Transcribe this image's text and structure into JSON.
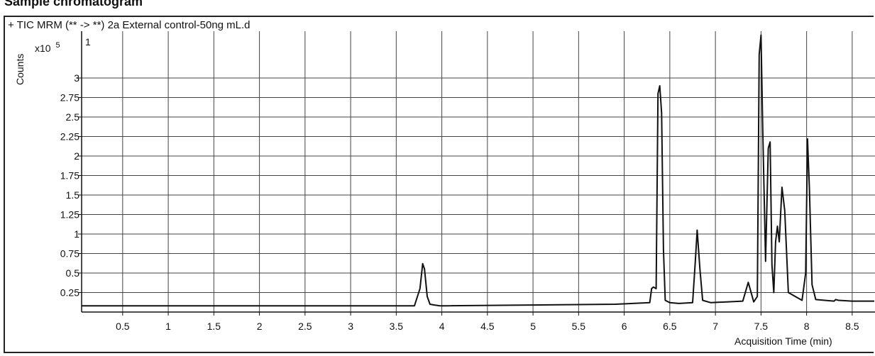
{
  "page": {
    "heading": "Sample chromatogram"
  },
  "chart_data": {
    "type": "line",
    "title": "+ TIC MRM (** -> **) 2a External control-50ng mL.d",
    "xlabel": "Acquisition Time (min)",
    "ylabel": "Counts",
    "y_multiplier_label": "x10",
    "y_multiplier_exponent": "5",
    "panel_number": "1",
    "xlim": [
      0.05,
      8.75
    ],
    "ylim": [
      0,
      3.6
    ],
    "grid": true,
    "x_ticks": [
      0.5,
      1,
      1.5,
      2,
      2.5,
      3,
      3.5,
      4,
      4.5,
      5,
      5.5,
      6,
      6.5,
      7,
      7.5,
      8,
      8.5
    ],
    "x_tick_labels": [
      "0.5",
      "1",
      "1.5",
      "2",
      "2.5",
      "3",
      "3.5",
      "4",
      "4.5",
      "5",
      "5.5",
      "6",
      "6.5",
      "7",
      "7.5",
      "8",
      "8.5"
    ],
    "y_ticks": [
      0.25,
      0.5,
      0.75,
      1,
      1.25,
      1.5,
      1.75,
      2,
      2.25,
      2.5,
      2.75,
      3
    ],
    "y_tick_labels": [
      "0.25",
      "0.5",
      "0.75",
      "1",
      "1.25",
      "1.5",
      "1.75",
      "2",
      "2.25",
      "2.5",
      "2.75",
      "3"
    ],
    "series": [
      {
        "x": [
          0.05,
          3.7,
          3.76,
          3.79,
          3.81,
          3.84,
          3.87,
          3.92,
          3.98,
          4.05,
          5.9,
          6.28,
          6.3,
          6.32,
          6.35,
          6.37,
          6.39,
          6.41,
          6.43,
          6.45,
          6.5,
          6.6,
          6.75,
          6.78,
          6.8,
          6.83,
          6.86,
          6.95,
          7.3,
          7.36,
          7.38,
          7.42,
          7.46,
          7.48,
          7.5,
          7.52,
          7.55,
          7.58,
          7.6,
          7.62,
          7.64,
          7.66,
          7.68,
          7.7,
          7.73,
          7.76,
          7.8,
          7.95,
          7.99,
          8.01,
          8.03,
          8.06,
          8.1,
          8.3,
          8.32,
          8.35,
          8.5,
          8.75
        ],
        "y": [
          0.08,
          0.08,
          0.3,
          0.62,
          0.55,
          0.2,
          0.1,
          0.09,
          0.08,
          0.08,
          0.1,
          0.12,
          0.3,
          0.32,
          0.3,
          2.8,
          2.9,
          2.55,
          0.8,
          0.15,
          0.12,
          0.11,
          0.12,
          0.65,
          1.05,
          0.55,
          0.15,
          0.12,
          0.14,
          0.38,
          0.3,
          0.13,
          0.2,
          3.3,
          3.55,
          2.3,
          0.65,
          2.1,
          2.18,
          0.6,
          0.25,
          0.9,
          1.1,
          0.9,
          1.6,
          1.3,
          0.25,
          0.15,
          0.5,
          2.22,
          1.6,
          0.35,
          0.16,
          0.14,
          0.16,
          0.15,
          0.14,
          0.14
        ]
      }
    ]
  }
}
